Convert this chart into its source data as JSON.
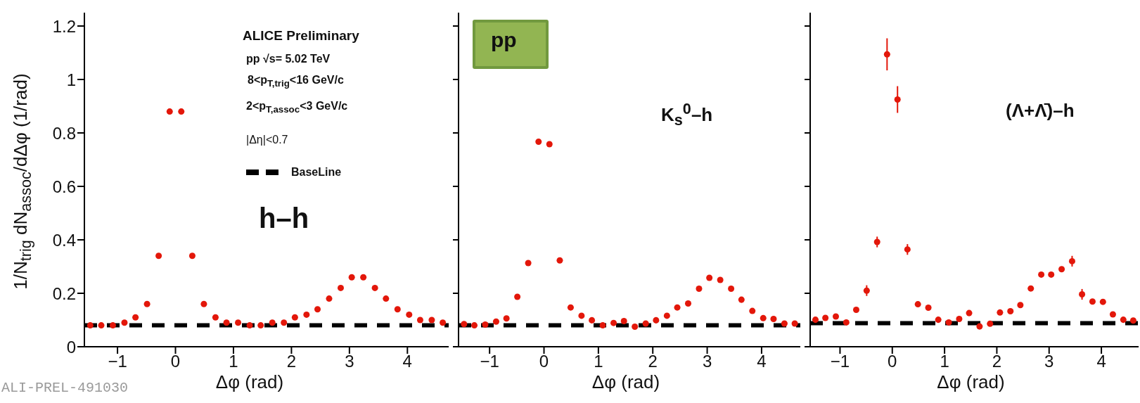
{
  "chart_data": [
    {
      "type": "scatter",
      "xlabel": "Δφ (rad)",
      "ylabel": "1/N$_{trig}$ dN$_{assoc}$/dΔφ (1/rad)",
      "x": [
        -1.47,
        -1.28,
        -1.08,
        -0.88,
        -0.69,
        -0.49,
        -0.29,
        -0.1,
        0.1,
        0.29,
        0.49,
        0.69,
        0.88,
        1.08,
        1.28,
        1.47,
        1.67,
        1.87,
        2.06,
        2.26,
        2.45,
        2.65,
        2.85,
        3.04,
        3.24,
        3.44,
        3.63,
        3.83,
        4.03,
        4.22,
        4.42,
        4.61
      ],
      "series": [
        {
          "color": "#e3170a",
          "values": [
            0.08,
            0.08,
            0.08,
            0.09,
            0.11,
            0.16,
            0.34,
            0.88,
            0.88,
            0.34,
            0.16,
            0.11,
            0.09,
            0.09,
            0.08,
            0.08,
            0.09,
            0.09,
            0.11,
            0.12,
            0.14,
            0.18,
            0.22,
            0.26,
            0.26,
            0.22,
            0.18,
            0.14,
            0.12,
            0.1,
            0.1,
            0.09
          ]
        }
      ],
      "marker": "circle",
      "xlim": [
        -1.571,
        4.712
      ],
      "xticks": [
        -1,
        0,
        1,
        2,
        3,
        4
      ],
      "ylim": [
        0,
        1.25
      ],
      "yticks": [
        0,
        0.2,
        0.4,
        0.6,
        0.8,
        1,
        1.2
      ],
      "ref_lines": [
        {
          "axis": "y",
          "value": 0.08,
          "label": "BaseLine",
          "color": "#000000",
          "line_style": "dashed"
        }
      ],
      "annotations": [
        "ALICE Preliminary",
        "pp  √s= 5.02 TeV",
        "8<p$_{T,trig}$<16 GeV/c",
        "2<p$_{T,assoc}$<3 GeV/c",
        "|Δη|<0.7",
        "h–h",
        "ALI-PREL-491030"
      ]
    },
    {
      "type": "scatter",
      "xlabel": "Δφ (rad)",
      "tick_labels": "x",
      "x": [
        -1.47,
        -1.28,
        -1.08,
        -0.88,
        -0.69,
        -0.49,
        -0.29,
        -0.1,
        0.1,
        0.29,
        0.49,
        0.69,
        0.88,
        1.08,
        1.28,
        1.47,
        1.67,
        1.87,
        2.06,
        2.26,
        2.45,
        2.65,
        2.85,
        3.04,
        3.24,
        3.44,
        3.63,
        3.83,
        4.03,
        4.22,
        4.42,
        4.61
      ],
      "series": [
        {
          "color": "#e3170a",
          "values": [
            0.085,
            0.08,
            0.083,
            0.094,
            0.106,
            0.187,
            0.313,
            0.767,
            0.758,
            0.323,
            0.147,
            0.116,
            0.099,
            0.08,
            0.089,
            0.096,
            0.075,
            0.087,
            0.099,
            0.116,
            0.147,
            0.162,
            0.217,
            0.258,
            0.25,
            0.217,
            0.176,
            0.134,
            0.107,
            0.104,
            0.087,
            0.087
          ]
        }
      ],
      "marker": "circle",
      "xlim": [
        -1.571,
        4.712
      ],
      "xticks": [
        -1,
        0,
        1,
        2,
        3,
        4
      ],
      "ylim": [
        0,
        1.25
      ],
      "yticks": [
        0,
        0.2,
        0.4,
        0.6,
        0.8,
        1,
        1.2
      ],
      "ref_lines": [
        {
          "axis": "y",
          "value": 0.08,
          "color": "#000000",
          "line_style": "dashed"
        }
      ],
      "annotations": [
        "pp",
        "K$_{s}$$^{0}$–h"
      ]
    },
    {
      "type": "scatter",
      "xlabel": "Δφ (rad)",
      "tick_labels": "x",
      "x": [
        -1.47,
        -1.28,
        -1.08,
        -0.88,
        -0.69,
        -0.49,
        -0.29,
        -0.1,
        0.1,
        0.29,
        0.49,
        0.69,
        0.88,
        1.08,
        1.28,
        1.47,
        1.67,
        1.87,
        2.06,
        2.26,
        2.45,
        2.65,
        2.85,
        3.04,
        3.24,
        3.44,
        3.63,
        3.83,
        4.03,
        4.22,
        4.42,
        4.61
      ],
      "series": [
        {
          "color": "#e3170a",
          "values": [
            0.101,
            0.108,
            0.113,
            0.091,
            0.138,
            0.21,
            0.392,
            1.094,
            0.925,
            0.364,
            0.159,
            0.146,
            0.101,
            0.091,
            0.104,
            0.126,
            0.076,
            0.086,
            0.128,
            0.133,
            0.156,
            0.218,
            0.27,
            0.27,
            0.29,
            0.32,
            0.196,
            0.169,
            0.168,
            0.121,
            0.101,
            0.098
          ],
          "errors": [
            null,
            null,
            null,
            null,
            null,
            0.02,
            0.02,
            0.06,
            0.05,
            0.02,
            null,
            null,
            null,
            null,
            null,
            null,
            null,
            null,
            null,
            null,
            null,
            null,
            null,
            null,
            null,
            0.02,
            0.02,
            null,
            null,
            null,
            null,
            null
          ]
        }
      ],
      "marker": "circle",
      "xlim": [
        -1.571,
        4.712
      ],
      "xticks": [
        -1,
        0,
        1,
        2,
        3,
        4
      ],
      "ylim": [
        0,
        1.25
      ],
      "yticks": [
        0,
        0.2,
        0.4,
        0.6,
        0.8,
        1,
        1.2
      ],
      "ref_lines": [
        {
          "axis": "y",
          "value": 0.088,
          "color": "#000000",
          "line_style": "dashed"
        }
      ],
      "annotations": [
        "(Λ+Λ̄)–h"
      ]
    }
  ]
}
